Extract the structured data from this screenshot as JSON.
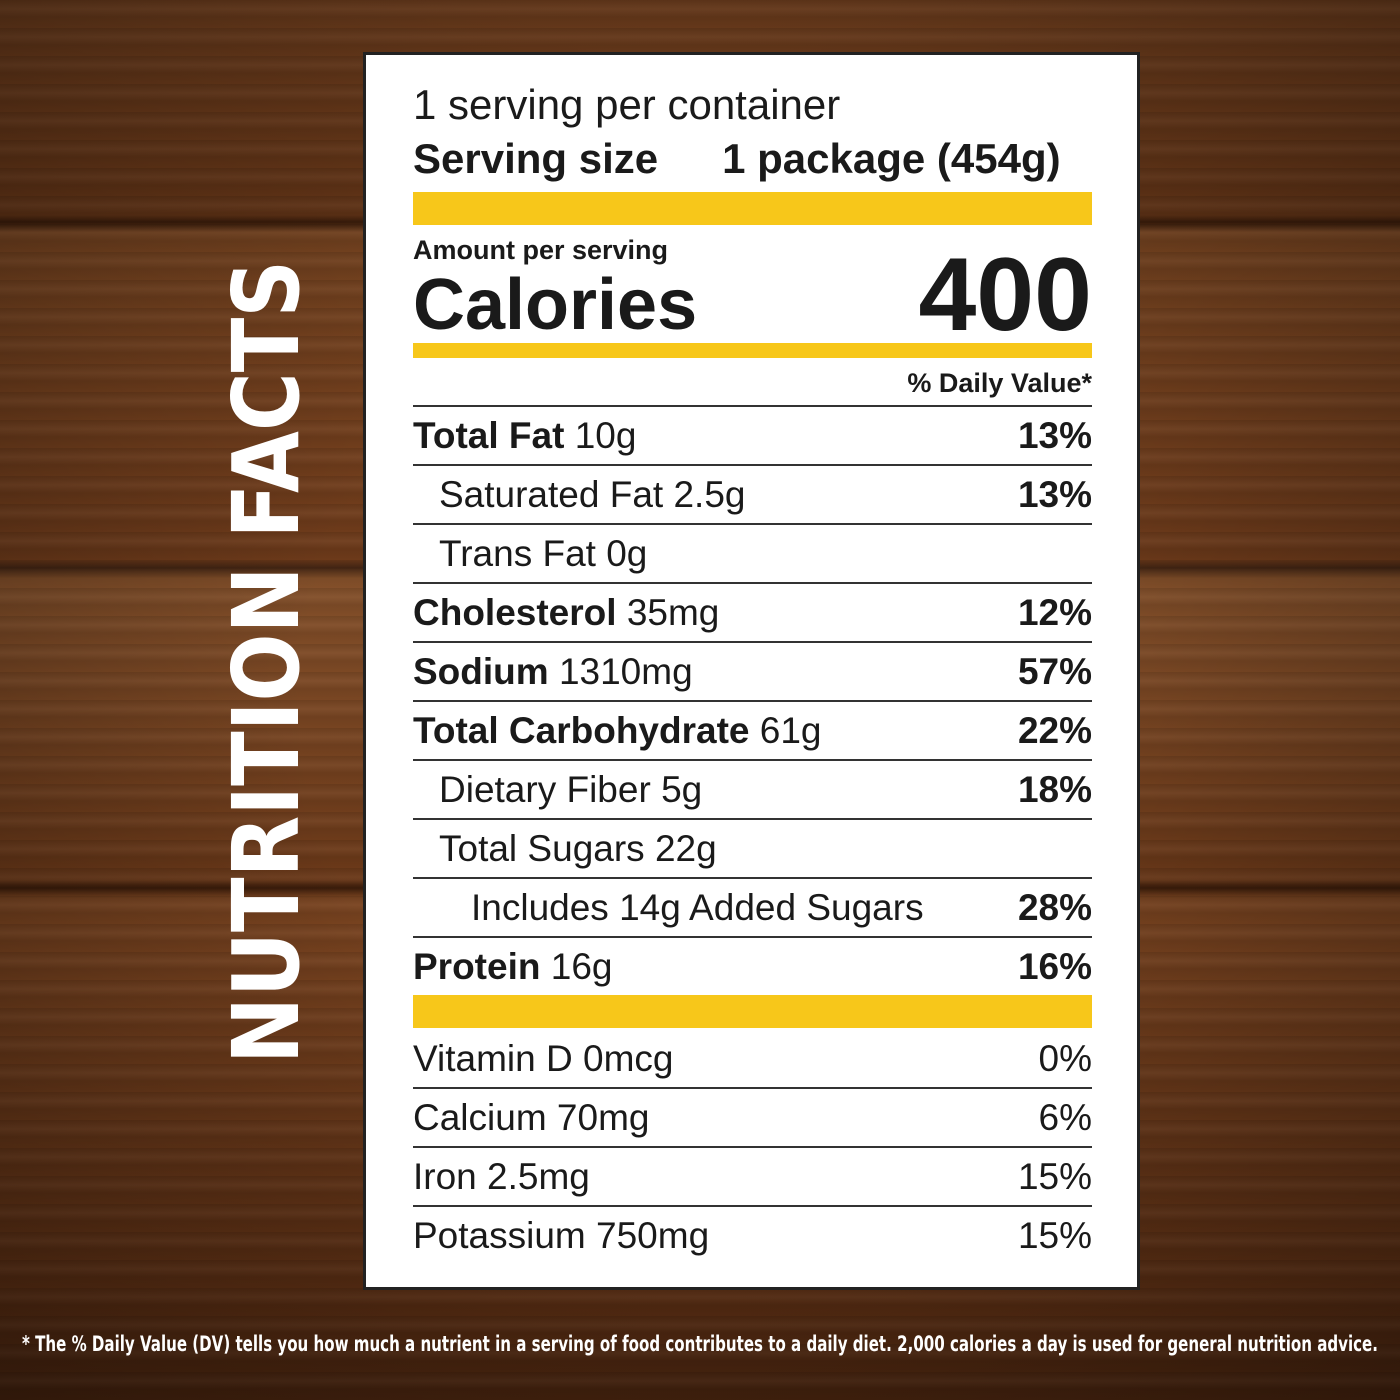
{
  "side_title": "NUTRITION FACTS",
  "label": {
    "servings": "1 serving per container",
    "serving_size_label": "Serving size",
    "serving_size_value": "1 package (454g)",
    "amount_per_serving": "Amount per serving",
    "calories_label": "Calories",
    "calories_value": "400",
    "daily_value_header": "% Daily Value*",
    "nutrients": [
      {
        "name": "Total Fat",
        "amount": "10g",
        "dv": "13%"
      },
      {
        "name": "Saturated Fat",
        "amount": "2.5g",
        "dv": "13%"
      },
      {
        "name": "Trans Fat",
        "amount": "0g"
      },
      {
        "name": "Cholesterol",
        "amount": "35mg",
        "dv": "12%"
      },
      {
        "name": "Sodium",
        "amount": "1310mg",
        "dv": "57%"
      },
      {
        "name": "Total Carbohydrate",
        "amount": "61g",
        "dv": "22%"
      },
      {
        "name": "Dietary Fiber",
        "amount": "5g",
        "dv": "18%"
      },
      {
        "name": "Total Sugars",
        "amount": "22g"
      },
      {
        "name": "Includes 14g Added Sugars",
        "dv": "28%"
      },
      {
        "name": "Protein",
        "amount": "16g",
        "dv": "16%"
      }
    ],
    "vitamins": [
      {
        "name": "Vitamin D",
        "amount": "0mcg",
        "dv": "0%"
      },
      {
        "name": "Calcium",
        "amount": "70mg",
        "dv": "6%"
      },
      {
        "name": "Iron",
        "amount": "2.5mg",
        "dv": "15%"
      },
      {
        "name": "Potassium",
        "amount": "750mg",
        "dv": "15%"
      }
    ]
  },
  "footnote": "* The % Daily Value (DV) tells you how much a nutrient in a serving of food contributes to a daily diet. 2,000 calories a day is used for general nutrition advice."
}
